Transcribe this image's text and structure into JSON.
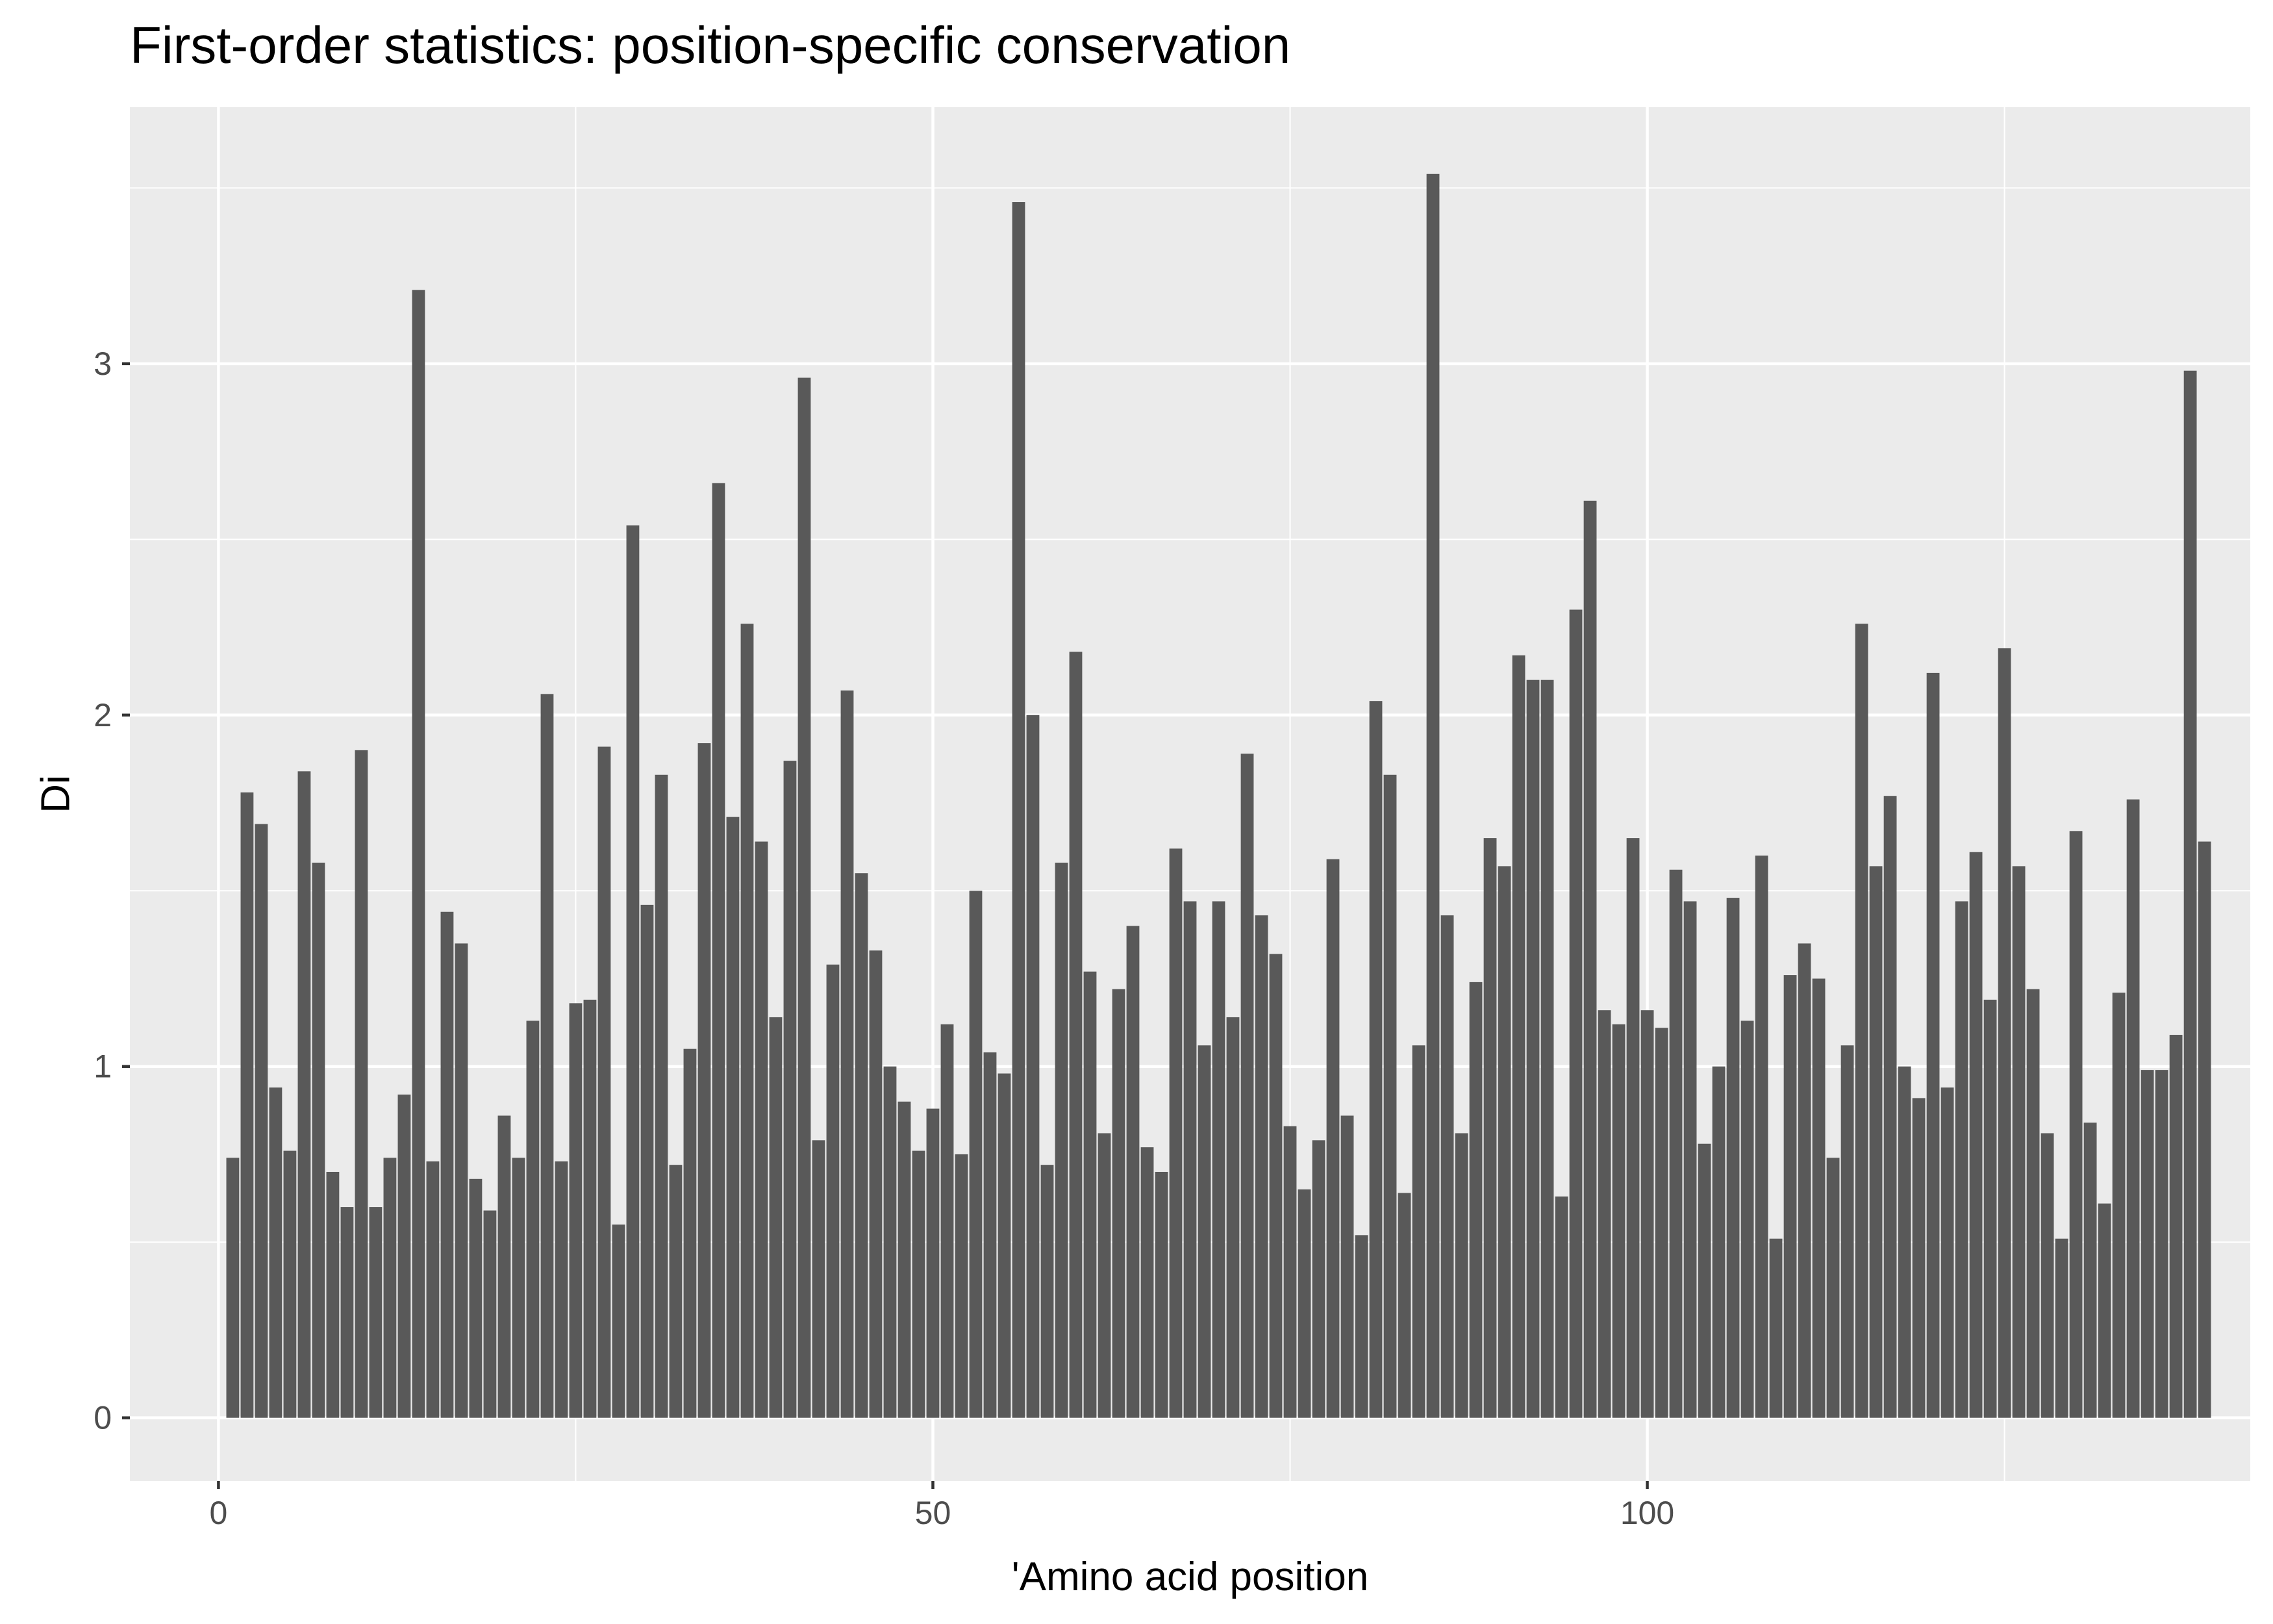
{
  "chart_data": {
    "type": "bar",
    "title": "First-order statistics: position-specific conservation",
    "xlabel": "'Amino acid position",
    "ylabel": "Di",
    "xlim": [
      -6.2,
      142.2
    ],
    "ylim": [
      -0.18,
      3.73
    ],
    "x_ticks": [
      0,
      50,
      100
    ],
    "y_ticks": [
      0,
      1,
      2,
      3
    ],
    "grid": true,
    "legend": "none",
    "colors": {
      "bar": "#595959",
      "panel": "#ebebeb",
      "grid": "#ffffff",
      "tick": "#333333"
    },
    "x": [
      1,
      2,
      3,
      4,
      5,
      6,
      7,
      8,
      9,
      10,
      11,
      12,
      13,
      14,
      15,
      16,
      17,
      18,
      19,
      20,
      21,
      22,
      23,
      24,
      25,
      26,
      27,
      28,
      29,
      30,
      31,
      32,
      33,
      34,
      35,
      36,
      37,
      38,
      39,
      40,
      41,
      42,
      43,
      44,
      45,
      46,
      47,
      48,
      49,
      50,
      51,
      52,
      53,
      54,
      55,
      56,
      57,
      58,
      59,
      60,
      61,
      62,
      63,
      64,
      65,
      66,
      67,
      68,
      69,
      70,
      71,
      72,
      73,
      74,
      75,
      76,
      77,
      78,
      79,
      80,
      81,
      82,
      83,
      84,
      85,
      86,
      87,
      88,
      89,
      90,
      91,
      92,
      93,
      94,
      95,
      96,
      97,
      98,
      99,
      100,
      101,
      102,
      103,
      104,
      105,
      106,
      107,
      108,
      109,
      110,
      111,
      112,
      113,
      114,
      115,
      116,
      117,
      118,
      119,
      120,
      121,
      122,
      123,
      124,
      125,
      126,
      127,
      128,
      129,
      130,
      131,
      132,
      133,
      134,
      135,
      136,
      137,
      138,
      139
    ],
    "values": [
      0.74,
      1.78,
      1.69,
      0.94,
      0.76,
      1.84,
      1.58,
      0.7,
      0.6,
      1.9,
      0.6,
      0.74,
      0.92,
      3.21,
      0.73,
      1.44,
      1.35,
      0.68,
      0.59,
      0.86,
      0.74,
      1.13,
      2.06,
      0.73,
      1.18,
      1.19,
      1.91,
      0.55,
      2.54,
      1.46,
      1.83,
      0.72,
      1.05,
      1.92,
      2.66,
      1.71,
      2.26,
      1.64,
      1.14,
      1.87,
      2.96,
      0.79,
      1.29,
      2.07,
      1.55,
      1.33,
      1.0,
      0.9,
      0.76,
      0.88,
      1.12,
      0.75,
      1.5,
      1.04,
      0.98,
      3.46,
      2.0,
      0.72,
      1.58,
      2.18,
      1.27,
      0.81,
      1.22,
      1.4,
      0.77,
      0.7,
      1.62,
      1.47,
      1.06,
      1.47,
      1.14,
      1.89,
      1.43,
      1.32,
      0.83,
      0.65,
      0.79,
      1.59,
      0.86,
      0.52,
      2.04,
      1.83,
      0.64,
      1.06,
      3.54,
      1.43,
      0.81,
      1.24,
      1.65,
      1.57,
      2.17,
      2.1,
      2.1,
      0.63,
      2.3,
      2.61,
      1.16,
      1.12,
      1.65,
      1.16,
      1.11,
      1.56,
      1.47,
      0.78,
      1.0,
      1.48,
      1.13,
      1.6,
      0.51,
      1.26,
      1.35,
      1.25,
      0.74,
      1.06,
      2.26,
      1.57,
      1.77,
      1.0,
      0.91,
      2.12,
      0.94,
      1.47,
      1.61,
      1.19,
      2.19,
      1.57,
      1.22,
      0.81,
      0.51,
      1.67,
      0.84,
      0.61,
      1.21,
      1.76,
      0.99,
      0.99,
      1.09,
      2.98,
      1.64
    ]
  }
}
